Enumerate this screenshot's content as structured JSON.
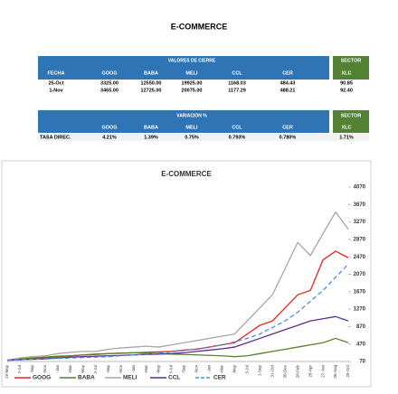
{
  "title": "E-COMMERCE",
  "table1": {
    "group_header": "VALORES DE CIERRE",
    "sector_header": "SECTOR",
    "columns": [
      "FECHA",
      "GOOG",
      "BABA",
      "MELI",
      "CCL",
      "CER",
      "XLC"
    ],
    "rows": [
      [
        "25-Oct",
        "3325.00",
        "12550.00",
        "19925.00",
        "1168.03",
        "484.43",
        "90.85"
      ],
      [
        "1-Nov",
        "3465.00",
        "12725.00",
        "20075.00",
        "1177.29",
        "488.21",
        "92.40"
      ]
    ]
  },
  "table2": {
    "group_header": "VARIACION %",
    "sector_header": "SECTOR",
    "columns": [
      "GOOG",
      "BABA",
      "MELI",
      "CCL",
      "CER",
      "XLC"
    ],
    "rows": [
      [
        "TASA DIREC.",
        "4.21%",
        "1.39%",
        "0.75%",
        "0.793%",
        "0.780%",
        "1.71%"
      ]
    ]
  },
  "chart_data": {
    "type": "line",
    "title": "E-COMMERCE",
    "categories": [
      "19-May",
      "18-Jul",
      "16-Sep",
      "15-Nov",
      "14-Jan",
      "15-Mar",
      "14-May",
      "13-Jul",
      "11-Sep",
      "10-Nov",
      "9-Jan",
      "10-Mar",
      "9-May",
      "8-Jul",
      "6-Sep",
      "5-Nov",
      "4-Jan",
      "5-Mar",
      "4-May",
      "3-Jul",
      "1-Sep",
      "31-Oct",
      "30-Dec",
      "28-Feb",
      "28-Apr",
      "27-Jun",
      "26-Aug",
      "25-Oct"
    ],
    "series": [
      {
        "name": "GOOG",
        "color": "#e8251c",
        "values": [
          100,
          120,
          140,
          150,
          180,
          200,
          220,
          230,
          250,
          260,
          270,
          280,
          290,
          300,
          330,
          350,
          400,
          450,
          500,
          700,
          900,
          1000,
          1300,
          1600,
          1700,
          2400,
          2600,
          2450
        ]
      },
      {
        "name": "BABA",
        "color": "#5b7f2a",
        "values": [
          100,
          130,
          150,
          170,
          190,
          200,
          220,
          240,
          250,
          260,
          270,
          260,
          250,
          240,
          230,
          220,
          210,
          200,
          180,
          200,
          250,
          300,
          350,
          400,
          450,
          500,
          600,
          500
        ]
      },
      {
        "name": "MELI",
        "color": "#a6a6a6",
        "values": [
          100,
          150,
          180,
          200,
          250,
          280,
          300,
          300,
          350,
          380,
          400,
          420,
          400,
          450,
          500,
          550,
          600,
          650,
          700,
          1000,
          1300,
          1600,
          2200,
          2800,
          2500,
          3000,
          3500,
          3100
        ]
      },
      {
        "name": "CCL",
        "color": "#5b2c8f",
        "values": [
          100,
          110,
          120,
          130,
          150,
          170,
          180,
          190,
          200,
          210,
          220,
          230,
          240,
          250,
          270,
          300,
          330,
          360,
          400,
          500,
          600,
          700,
          800,
          900,
          1000,
          1050,
          1100,
          1000
        ]
      },
      {
        "name": "CER",
        "color": "#4f8fd8",
        "line_style": "dashed",
        "values": [
          100,
          110,
          120,
          130,
          140,
          150,
          160,
          170,
          180,
          200,
          220,
          240,
          260,
          290,
          320,
          360,
          400,
          450,
          520,
          600,
          700,
          850,
          1000,
          1200,
          1450,
          1700,
          2000,
          2300
        ]
      }
    ],
    "ylim": [
      70,
      4070
    ],
    "yticks": [
      70,
      470,
      870,
      1270,
      1670,
      2070,
      2470,
      2870,
      3270,
      3670,
      4070
    ],
    "y_axis_side": "right",
    "legend_position": "bottom"
  }
}
